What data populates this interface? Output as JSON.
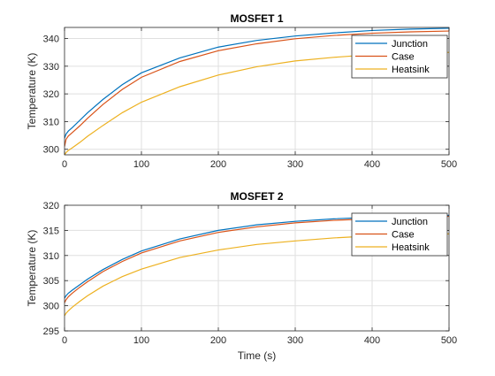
{
  "chart_data": [
    {
      "type": "line",
      "title": "MOSFET 1",
      "xlabel": "",
      "ylabel": "Temperature (K)",
      "xlim": [
        0,
        500
      ],
      "ylim": [
        298,
        344
      ],
      "xticks": [
        0,
        100,
        200,
        300,
        400,
        500
      ],
      "yticks": [
        300,
        310,
        320,
        330,
        340
      ],
      "grid": true,
      "legend_position": "top-right",
      "series": [
        {
          "name": "Junction",
          "color": "#0072BD",
          "x": [
            0,
            2,
            5,
            10,
            20,
            30,
            50,
            75,
            100,
            150,
            200,
            250,
            300,
            350,
            400,
            450,
            500
          ],
          "y": [
            304.0,
            305.5,
            306.6,
            307.8,
            310.5,
            313.2,
            318.0,
            323.3,
            327.6,
            333.0,
            336.9,
            339.3,
            340.9,
            342.0,
            342.9,
            343.4,
            343.7
          ]
        },
        {
          "name": "Case",
          "color": "#D95319",
          "x": [
            0,
            2,
            5,
            10,
            20,
            30,
            50,
            75,
            100,
            150,
            200,
            250,
            300,
            350,
            400,
            450,
            500
          ],
          "y": [
            301.0,
            303.6,
            304.8,
            306.0,
            308.5,
            311.2,
            316.2,
            321.6,
            326.0,
            331.7,
            335.6,
            338.1,
            339.9,
            341.1,
            341.9,
            342.4,
            342.7
          ]
        },
        {
          "name": "Heatsink",
          "color": "#EDB120",
          "x": [
            0,
            2,
            5,
            10,
            20,
            30,
            50,
            75,
            100,
            150,
            200,
            250,
            300,
            350,
            400,
            450,
            500
          ],
          "y": [
            298.0,
            298.8,
            299.6,
            300.5,
            302.5,
            304.7,
            308.6,
            313.2,
            317.0,
            322.6,
            326.8,
            329.8,
            331.9,
            333.2,
            334.2,
            334.7,
            335.0
          ]
        }
      ]
    },
    {
      "type": "line",
      "title": "MOSFET 2",
      "xlabel": "Time (s)",
      "ylabel": "Temperature (K)",
      "xlim": [
        0,
        500
      ],
      "ylim": [
        295,
        320
      ],
      "xticks": [
        0,
        100,
        200,
        300,
        400,
        500
      ],
      "yticks": [
        295,
        300,
        305,
        310,
        315,
        320
      ],
      "grid": true,
      "legend_position": "top-right",
      "series": [
        {
          "name": "Junction",
          "color": "#0072BD",
          "x": [
            0,
            2,
            5,
            10,
            20,
            30,
            50,
            75,
            100,
            150,
            200,
            250,
            300,
            350,
            400,
            450,
            500
          ],
          "y": [
            301.5,
            302.0,
            302.5,
            303.1,
            304.2,
            305.3,
            307.2,
            309.2,
            310.9,
            313.3,
            315.0,
            316.1,
            316.8,
            317.3,
            317.6,
            317.8,
            318.0
          ]
        },
        {
          "name": "Case",
          "color": "#D95319",
          "x": [
            0,
            2,
            5,
            10,
            20,
            30,
            50,
            75,
            100,
            150,
            200,
            250,
            300,
            350,
            400,
            450,
            500
          ],
          "y": [
            300.6,
            301.2,
            301.8,
            302.5,
            303.7,
            304.8,
            306.8,
            308.8,
            310.5,
            312.9,
            314.6,
            315.7,
            316.5,
            317.0,
            317.3,
            317.6,
            317.8
          ]
        },
        {
          "name": "Heatsink",
          "color": "#EDB120",
          "x": [
            0,
            2,
            5,
            10,
            20,
            30,
            50,
            75,
            100,
            150,
            200,
            250,
            300,
            350,
            400,
            450,
            500
          ],
          "y": [
            298.0,
            298.5,
            299.0,
            299.7,
            300.9,
            302.0,
            303.9,
            305.8,
            307.3,
            309.6,
            311.1,
            312.2,
            312.9,
            313.5,
            313.9,
            314.2,
            314.3
          ]
        }
      ]
    }
  ]
}
